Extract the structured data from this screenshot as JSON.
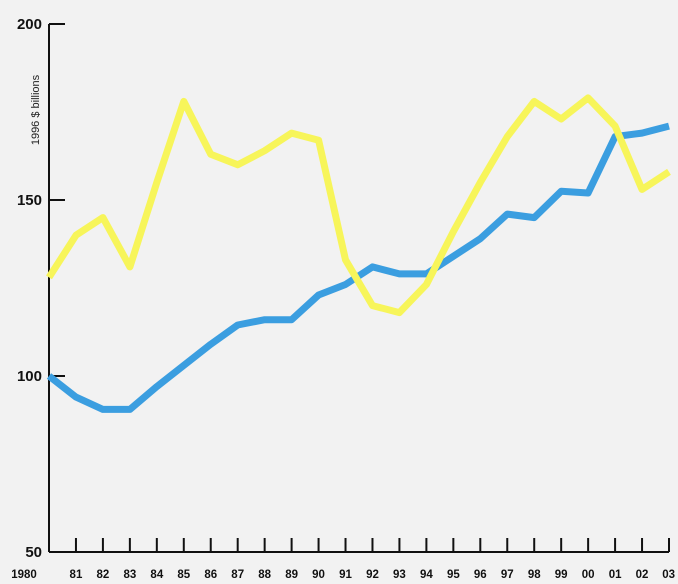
{
  "chart_data": {
    "type": "line",
    "title": "",
    "xlabel": "",
    "ylabel": "1996 $ billions",
    "ylim": [
      50,
      200
    ],
    "yticks": [
      50,
      100,
      150,
      200
    ],
    "grid": false,
    "x": [
      1980,
      1981,
      1982,
      1983,
      1984,
      1985,
      1986,
      1987,
      1988,
      1989,
      1990,
      1991,
      1992,
      1993,
      1994,
      1995,
      1996,
      1997,
      1998,
      1999,
      2000,
      2001,
      2002,
      2003
    ],
    "x_tick_labels": [
      "1980",
      "81",
      "82",
      "83",
      "84",
      "85",
      "86",
      "87",
      "88",
      "89",
      "90",
      "91",
      "92",
      "93",
      "94",
      "95",
      "96",
      "97",
      "98",
      "99",
      "00",
      "01",
      "02",
      "03"
    ],
    "series": [
      {
        "color": "#3b9ee0",
        "values": [
          100,
          94,
          90.5,
          90.5,
          97,
          103,
          109,
          114.5,
          116,
          116,
          123,
          126,
          131,
          129,
          129,
          134,
          139,
          146,
          145,
          152.5,
          152,
          168,
          169,
          171
        ]
      },
      {
        "color": "#f7f55a",
        "values": [
          128,
          140,
          145,
          131,
          155,
          178,
          163,
          160,
          164,
          169,
          167,
          133,
          120,
          118,
          126,
          141,
          155,
          168,
          178,
          173,
          179,
          171,
          153,
          158
        ]
      }
    ]
  }
}
